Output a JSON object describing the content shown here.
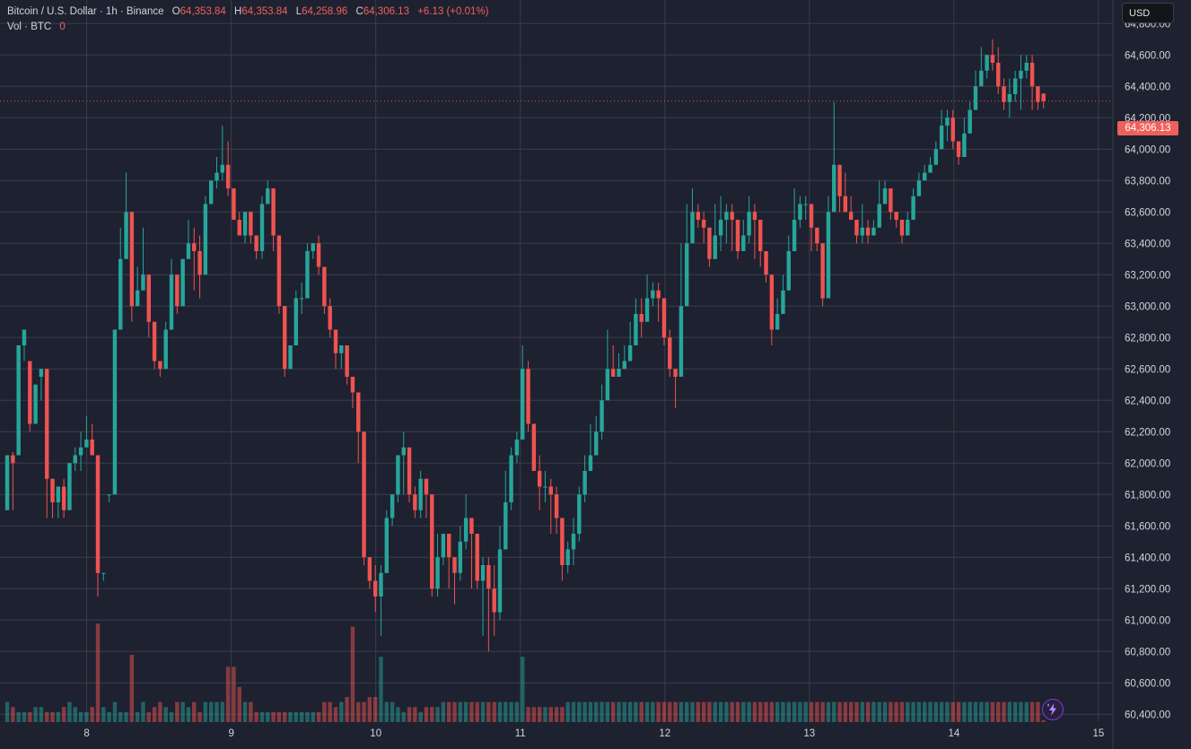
{
  "legend": {
    "symbol": "Bitcoin / U.S. Dollar · 1h · Binance",
    "open_label": "O",
    "open": "64,353.84",
    "high_label": "H",
    "high": "64,353.84",
    "low_label": "L",
    "low": "64,258.96",
    "close_label": "C",
    "close": "64,306.13",
    "change": "+6.13 (+0.01%)",
    "vol_label": "Vol · BTC",
    "vol_value": "0"
  },
  "currency": "USD",
  "last_price": "64,306.13",
  "colors": {
    "up": "#26a69a",
    "down": "#ef5350",
    "background": "#1e2130",
    "grid": "#3a3d4a"
  },
  "icons": {
    "bolt": "lightning-bolt-icon"
  },
  "chart_data": {
    "type": "candlestick",
    "yticks": [
      "64,800.00",
      "64,600.00",
      "64,400.00",
      "64,200.00",
      "64,000.00",
      "63,800.00",
      "63,600.00",
      "63,400.00",
      "63,200.00",
      "63,000.00",
      "62,800.00",
      "62,600.00",
      "62,400.00",
      "62,200.00",
      "62,000.00",
      "61,800.00",
      "61,600.00",
      "61,400.00",
      "61,200.00",
      "61,000.00",
      "60,800.00",
      "60,600.00",
      "60,400.00"
    ],
    "ytick_values": [
      64800,
      64600,
      64400,
      64200,
      64000,
      63800,
      63600,
      63400,
      63200,
      63000,
      62800,
      62600,
      62400,
      62200,
      62000,
      61800,
      61600,
      61400,
      61200,
      61000,
      60800,
      60600,
      60400
    ],
    "ylim": [
      60350,
      64950
    ],
    "xticks": [
      "8",
      "9",
      "10",
      "11",
      "12",
      "13",
      "14",
      "15"
    ],
    "xlim": [
      7.4,
      15.1
    ],
    "candles": [
      [
        61700,
        62050,
        61650,
        62050,
        0.2
      ],
      [
        62050,
        62000,
        62070,
        61700,
        0.15
      ],
      [
        62050,
        62750,
        61950,
        62750,
        0.1
      ],
      [
        62750,
        62850,
        62600,
        62650,
        0.1
      ],
      [
        62650,
        62250,
        62600,
        62200,
        0.1
      ],
      [
        62250,
        62500,
        62200,
        62550,
        0.15
      ],
      [
        62550,
        62600,
        62600,
        62400,
        0.15
      ],
      [
        62600,
        61900,
        62600,
        61650,
        0.1
      ],
      [
        61900,
        61750,
        61850,
        61650,
        0.1
      ],
      [
        61750,
        61850,
        61700,
        61650,
        0.1
      ],
      [
        61850,
        61700,
        61900,
        61650,
        0.15
      ],
      [
        61700,
        62000,
        61700,
        62100,
        0.2
      ],
      [
        62000,
        62050,
        62100,
        61950,
        0.15
      ],
      [
        62050,
        62100,
        62200,
        61950,
        0.1
      ],
      [
        62100,
        62150,
        62300,
        62100,
        0.1
      ],
      [
        62150,
        62050,
        62250,
        62050,
        0.15
      ],
      [
        62050,
        61300,
        62050,
        61150,
        0.98
      ],
      [
        61300,
        61300,
        61300,
        61250,
        0.15
      ],
      [
        61800,
        61800,
        61800,
        61750,
        0.1
      ],
      [
        61800,
        62850,
        62200,
        61850,
        0.2
      ],
      [
        62850,
        63300,
        63500,
        63050,
        0.1
      ],
      [
        63300,
        63600,
        63850,
        63350,
        0.1
      ],
      [
        63600,
        63000,
        63600,
        62900,
        0.67
      ],
      [
        63000,
        63100,
        63250,
        63000,
        0.1
      ],
      [
        63100,
        63200,
        63500,
        63100,
        0.2
      ],
      [
        63200,
        62900,
        63200,
        62800,
        0.1
      ],
      [
        62900,
        62650,
        62800,
        62600,
        0.15
      ],
      [
        62650,
        62600,
        62600,
        62550,
        0.2
      ],
      [
        62600,
        62850,
        62900,
        62800,
        0.15
      ],
      [
        62850,
        63200,
        63300,
        63150,
        0.1
      ],
      [
        63200,
        63000,
        63200,
        62950,
        0.2
      ],
      [
        63000,
        63300,
        63300,
        63200,
        0.2
      ],
      [
        63300,
        63400,
        63550,
        63400,
        0.15
      ],
      [
        63400,
        63350,
        63500,
        63100,
        0.2
      ],
      [
        63350,
        63200,
        63450,
        63050,
        0.1
      ],
      [
        63200,
        63650,
        63700,
        63200,
        0.2
      ],
      [
        63650,
        63800,
        63800,
        63750,
        0.2
      ],
      [
        63800,
        63850,
        63950,
        63750,
        0.2
      ],
      [
        63850,
        63900,
        64150,
        63800,
        0.2
      ],
      [
        63900,
        63750,
        64050,
        63700,
        0.55
      ],
      [
        63750,
        63550,
        63750,
        63550,
        0.55
      ],
      [
        63550,
        63450,
        63600,
        63450,
        0.35
      ],
      [
        63450,
        63600,
        63600,
        63400,
        0.2
      ],
      [
        63600,
        63450,
        63450,
        63400,
        0.2
      ],
      [
        63450,
        63350,
        63350,
        63300,
        0.1
      ],
      [
        63350,
        63650,
        63700,
        63300,
        0.1
      ],
      [
        63650,
        63750,
        63800,
        63650,
        0.1
      ],
      [
        63750,
        63450,
        63550,
        63350,
        0.1
      ],
      [
        63450,
        63000,
        63400,
        62950,
        0.1
      ],
      [
        63000,
        62600,
        63000,
        62550,
        0.1
      ],
      [
        62600,
        62750,
        62750,
        62600,
        0.1
      ],
      [
        62750,
        63050,
        63100,
        62750,
        0.1
      ],
      [
        63050,
        63050,
        63150,
        62950,
        0.1
      ],
      [
        63050,
        63350,
        63400,
        63050,
        0.1
      ],
      [
        63350,
        63400,
        63400,
        63300,
        0.1
      ],
      [
        63400,
        63250,
        63450,
        63200,
        0.1
      ],
      [
        63250,
        63000,
        63250,
        62950,
        0.2
      ],
      [
        63000,
        62850,
        63050,
        62800,
        0.2
      ],
      [
        62850,
        62700,
        62700,
        62600,
        0.15
      ],
      [
        62700,
        62750,
        62750,
        62600,
        0.2
      ],
      [
        62750,
        62550,
        62750,
        62500,
        0.25
      ],
      [
        62550,
        62450,
        62500,
        62350,
        0.95
      ],
      [
        62450,
        62200,
        62450,
        62000,
        0.2
      ],
      [
        62200,
        61400,
        62150,
        61350,
        0.2
      ],
      [
        61400,
        61250,
        61300,
        61200,
        0.25
      ],
      [
        61250,
        61150,
        61350,
        61050,
        0.25
      ],
      [
        61150,
        61300,
        61350,
        60900,
        0.65
      ],
      [
        61300,
        61650,
        61700,
        61300,
        0.2
      ],
      [
        61650,
        61800,
        61750,
        61600,
        0.2
      ],
      [
        61800,
        62050,
        62000,
        61750,
        0.15
      ],
      [
        62050,
        62100,
        62200,
        61800,
        0.1
      ],
      [
        62100,
        61800,
        62100,
        61750,
        0.15
      ],
      [
        61800,
        61700,
        61850,
        61650,
        0.15
      ],
      [
        61700,
        61900,
        61950,
        61650,
        0.1
      ],
      [
        61900,
        61800,
        61850,
        61650,
        0.15
      ],
      [
        61800,
        61200,
        61800,
        61150,
        0.15
      ],
      [
        61200,
        61400,
        61550,
        61150,
        0.15
      ],
      [
        61400,
        61550,
        61500,
        61350,
        0.2
      ],
      [
        61550,
        61400,
        61550,
        61200,
        0.2
      ],
      [
        61400,
        61300,
        61300,
        61100,
        0.2
      ],
      [
        61300,
        61500,
        61600,
        61250,
        0.2
      ],
      [
        61500,
        61650,
        61800,
        61450,
        0.2
      ],
      [
        61650,
        61550,
        61650,
        61200,
        0.2
      ],
      [
        61550,
        61250,
        61550,
        61200,
        0.2
      ],
      [
        61250,
        61350,
        61400,
        60900,
        0.2
      ],
      [
        61350,
        61200,
        61400,
        60800,
        0.2
      ],
      [
        61200,
        61050,
        61350,
        60900,
        0.2
      ],
      [
        61050,
        61450,
        61600,
        61000,
        0.2
      ],
      [
        61450,
        61750,
        61950,
        61450,
        0.2
      ],
      [
        61750,
        62050,
        62100,
        61700,
        0.2
      ],
      [
        62050,
        62150,
        62200,
        62000,
        0.2
      ],
      [
        62150,
        62600,
        62750,
        62150,
        0.65
      ],
      [
        62600,
        62250,
        62650,
        62200,
        0.15
      ],
      [
        62250,
        61950,
        62250,
        61950,
        0.15
      ],
      [
        61950,
        61850,
        62050,
        61700,
        0.15
      ],
      [
        61850,
        61850,
        61950,
        61750,
        0.15
      ],
      [
        61850,
        61800,
        61900,
        61550,
        0.15
      ],
      [
        61800,
        61650,
        61850,
        61550,
        0.15
      ],
      [
        61650,
        61350,
        61650,
        61250,
        0.15
      ],
      [
        61350,
        61450,
        61500,
        61300,
        0.2
      ],
      [
        61450,
        61550,
        61650,
        61350,
        0.2
      ],
      [
        61550,
        61800,
        61850,
        61500,
        0.2
      ],
      [
        61800,
        61950,
        62050,
        61750,
        0.2
      ],
      [
        61950,
        62050,
        62250,
        61950,
        0.2
      ],
      [
        62050,
        62200,
        62300,
        62050,
        0.2
      ],
      [
        62200,
        62400,
        62500,
        62150,
        0.2
      ],
      [
        62400,
        62600,
        62850,
        62400,
        0.2
      ],
      [
        62600,
        62550,
        62750,
        62550,
        0.2
      ],
      [
        62550,
        62600,
        62700,
        62550,
        0.2
      ],
      [
        62600,
        62650,
        62750,
        62600,
        0.2
      ],
      [
        62650,
        62750,
        62900,
        62700,
        0.2
      ],
      [
        62750,
        62950,
        63050,
        62750,
        0.2
      ],
      [
        62950,
        62900,
        63050,
        62800,
        0.2
      ],
      [
        62900,
        63050,
        63200,
        62900,
        0.2
      ],
      [
        63050,
        63100,
        63150,
        63000,
        0.2
      ],
      [
        63100,
        63050,
        63150,
        62900,
        0.2
      ],
      [
        63050,
        62800,
        63050,
        62750,
        0.2
      ],
      [
        62800,
        62600,
        62850,
        62550,
        0.2
      ],
      [
        62600,
        62550,
        62600,
        62350,
        0.2
      ],
      [
        62550,
        63000,
        63400,
        62600,
        0.2
      ],
      [
        63000,
        63400,
        63650,
        63050,
        0.2
      ],
      [
        63400,
        63600,
        63750,
        63500,
        0.2
      ],
      [
        63600,
        63550,
        63650,
        63500,
        0.2
      ],
      [
        63550,
        63500,
        63600,
        63400,
        0.2
      ],
      [
        63500,
        63300,
        63500,
        63250,
        0.2
      ],
      [
        63300,
        63450,
        63650,
        63300,
        0.2
      ],
      [
        63450,
        63550,
        63700,
        63350,
        0.2
      ],
      [
        63550,
        63600,
        63650,
        63400,
        0.2
      ],
      [
        63600,
        63550,
        63650,
        63350,
        0.2
      ],
      [
        63550,
        63350,
        63550,
        63300,
        0.2
      ],
      [
        63350,
        63450,
        63550,
        63350,
        0.2
      ],
      [
        63450,
        63600,
        63700,
        63400,
        0.2
      ],
      [
        63600,
        63550,
        63650,
        63300,
        0.2
      ],
      [
        63550,
        63350,
        63550,
        63250,
        0.2
      ],
      [
        63350,
        63200,
        63350,
        63150,
        0.2
      ],
      [
        63200,
        62850,
        63200,
        62750,
        0.2
      ],
      [
        62850,
        62950,
        63050,
        62850,
        0.2
      ],
      [
        62950,
        63100,
        63200,
        62950,
        0.2
      ],
      [
        63100,
        63350,
        63450,
        63100,
        0.2
      ],
      [
        63350,
        63550,
        63750,
        63400,
        0.2
      ],
      [
        63550,
        63650,
        63700,
        63500,
        0.2
      ],
      [
        63650,
        63650,
        63700,
        63550,
        0.2
      ],
      [
        63650,
        63500,
        63650,
        63350,
        0.2
      ],
      [
        63500,
        63400,
        63500,
        63350,
        0.2
      ],
      [
        63400,
        63050,
        63400,
        63000,
        0.2
      ],
      [
        63050,
        63600,
        63700,
        63050,
        0.2
      ],
      [
        63600,
        63900,
        64300,
        63600,
        0.2
      ],
      [
        63900,
        63700,
        63900,
        63600,
        0.2
      ],
      [
        63700,
        63600,
        63850,
        63600,
        0.2
      ],
      [
        63600,
        63550,
        63700,
        63550,
        0.2
      ],
      [
        63550,
        63450,
        63550,
        63400,
        0.2
      ],
      [
        63450,
        63500,
        63650,
        63400,
        0.2
      ],
      [
        63500,
        63450,
        63550,
        63400,
        0.2
      ],
      [
        63450,
        63500,
        63550,
        63450,
        0.2
      ],
      [
        63500,
        63650,
        63800,
        63500,
        0.2
      ],
      [
        63650,
        63750,
        63800,
        63650,
        0.2
      ],
      [
        63750,
        63600,
        63650,
        63550,
        0.2
      ],
      [
        63600,
        63550,
        63600,
        63500,
        0.2
      ],
      [
        63550,
        63450,
        63550,
        63400,
        0.2
      ],
      [
        63450,
        63550,
        63600,
        63450,
        0.2
      ],
      [
        63550,
        63700,
        63750,
        63550,
        0.2
      ],
      [
        63700,
        63800,
        63850,
        63700,
        0.2
      ],
      [
        63800,
        63850,
        63900,
        63800,
        0.2
      ],
      [
        63850,
        63900,
        63950,
        63850,
        0.2
      ],
      [
        63900,
        64000,
        64050,
        63900,
        0.2
      ],
      [
        64000,
        64150,
        64250,
        64000,
        0.2
      ],
      [
        64150,
        64200,
        64250,
        64050,
        0.2
      ],
      [
        64200,
        64050,
        64250,
        64000,
        0.2
      ],
      [
        64050,
        63950,
        64050,
        63900,
        0.2
      ],
      [
        63950,
        64100,
        64200,
        63950,
        0.2
      ],
      [
        64100,
        64250,
        64300,
        64100,
        0.2
      ],
      [
        64250,
        64400,
        64500,
        64250,
        0.2
      ],
      [
        64400,
        64500,
        64650,
        64400,
        0.2
      ],
      [
        64500,
        64600,
        64600,
        64450,
        0.2
      ],
      [
        64600,
        64550,
        64700,
        64500,
        0.2
      ],
      [
        64550,
        64400,
        64650,
        64350,
        0.2
      ],
      [
        64400,
        64300,
        64450,
        64250,
        0.2
      ],
      [
        64300,
        64350,
        64450,
        64200,
        0.2
      ],
      [
        64350,
        64450,
        64500,
        64300,
        0.2
      ],
      [
        64450,
        64500,
        64600,
        64250,
        0.2
      ],
      [
        64500,
        64550,
        64600,
        64450,
        0.2
      ],
      [
        64550,
        64400,
        64600,
        64250,
        0.2
      ],
      [
        64400,
        64300,
        64400,
        64250,
        0.2
      ],
      [
        64354,
        64306,
        64354,
        64259,
        0
      ]
    ]
  }
}
